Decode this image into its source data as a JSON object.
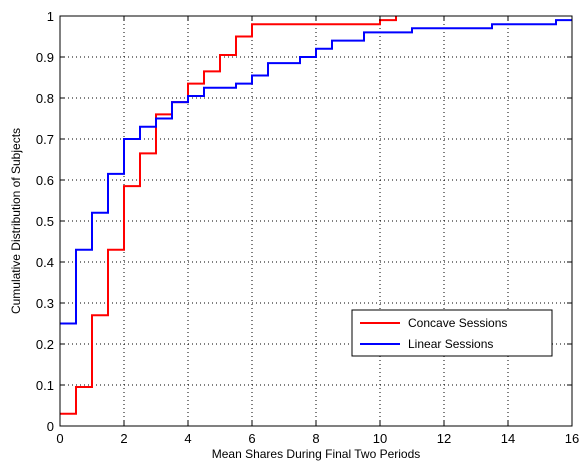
{
  "chart_data": {
    "type": "line",
    "step": true,
    "xlabel": "Mean Shares During Final Two Periods",
    "ylabel": "Cumulative Distribution of Subjects",
    "xlim": [
      0,
      16
    ],
    "ylim": [
      0,
      1
    ],
    "x_ticks": [
      0,
      2,
      4,
      6,
      8,
      10,
      12,
      14,
      16
    ],
    "y_ticks": [
      0,
      0.1,
      0.2,
      0.3,
      0.4,
      0.5,
      0.6,
      0.7,
      0.8,
      0.9,
      1
    ],
    "x_tick_labels": [
      "0",
      "2",
      "4",
      "6",
      "8",
      "10",
      "12",
      "14",
      "16"
    ],
    "y_tick_labels": [
      "0",
      "0.1",
      "0.2",
      "0.3",
      "0.4",
      "0.5",
      "0.6",
      "0.7",
      "0.8",
      "0.9",
      "1"
    ],
    "grid": true,
    "grid_style": "dotted",
    "legend_position": "lower-right",
    "series": [
      {
        "name": "Concave Sessions",
        "color": "#ff0000",
        "points": [
          [
            0,
            0.03
          ],
          [
            0.5,
            0.095
          ],
          [
            1,
            0.27
          ],
          [
            1.5,
            0.43
          ],
          [
            2,
            0.585
          ],
          [
            2.5,
            0.665
          ],
          [
            3,
            0.76
          ],
          [
            3.5,
            0.79
          ],
          [
            4,
            0.835
          ],
          [
            4.5,
            0.865
          ],
          [
            5,
            0.905
          ],
          [
            5.5,
            0.95
          ],
          [
            6,
            0.98
          ],
          [
            10,
            0.99
          ],
          [
            10.5,
            1.0
          ]
        ]
      },
      {
        "name": "Linear Sessions",
        "color": "#0000ff",
        "points": [
          [
            0,
            0.25
          ],
          [
            0.5,
            0.43
          ],
          [
            1,
            0.52
          ],
          [
            1.5,
            0.615
          ],
          [
            2,
            0.7
          ],
          [
            2.5,
            0.73
          ],
          [
            3,
            0.75
          ],
          [
            3.5,
            0.79
          ],
          [
            4,
            0.805
          ],
          [
            4.5,
            0.825
          ],
          [
            5.5,
            0.835
          ],
          [
            6,
            0.855
          ],
          [
            6.5,
            0.885
          ],
          [
            7.5,
            0.9
          ],
          [
            8,
            0.92
          ],
          [
            8.5,
            0.94
          ],
          [
            9.5,
            0.96
          ],
          [
            11,
            0.97
          ],
          [
            13.5,
            0.98
          ],
          [
            15.5,
            0.99
          ],
          [
            16,
            0.99
          ]
        ]
      }
    ]
  }
}
